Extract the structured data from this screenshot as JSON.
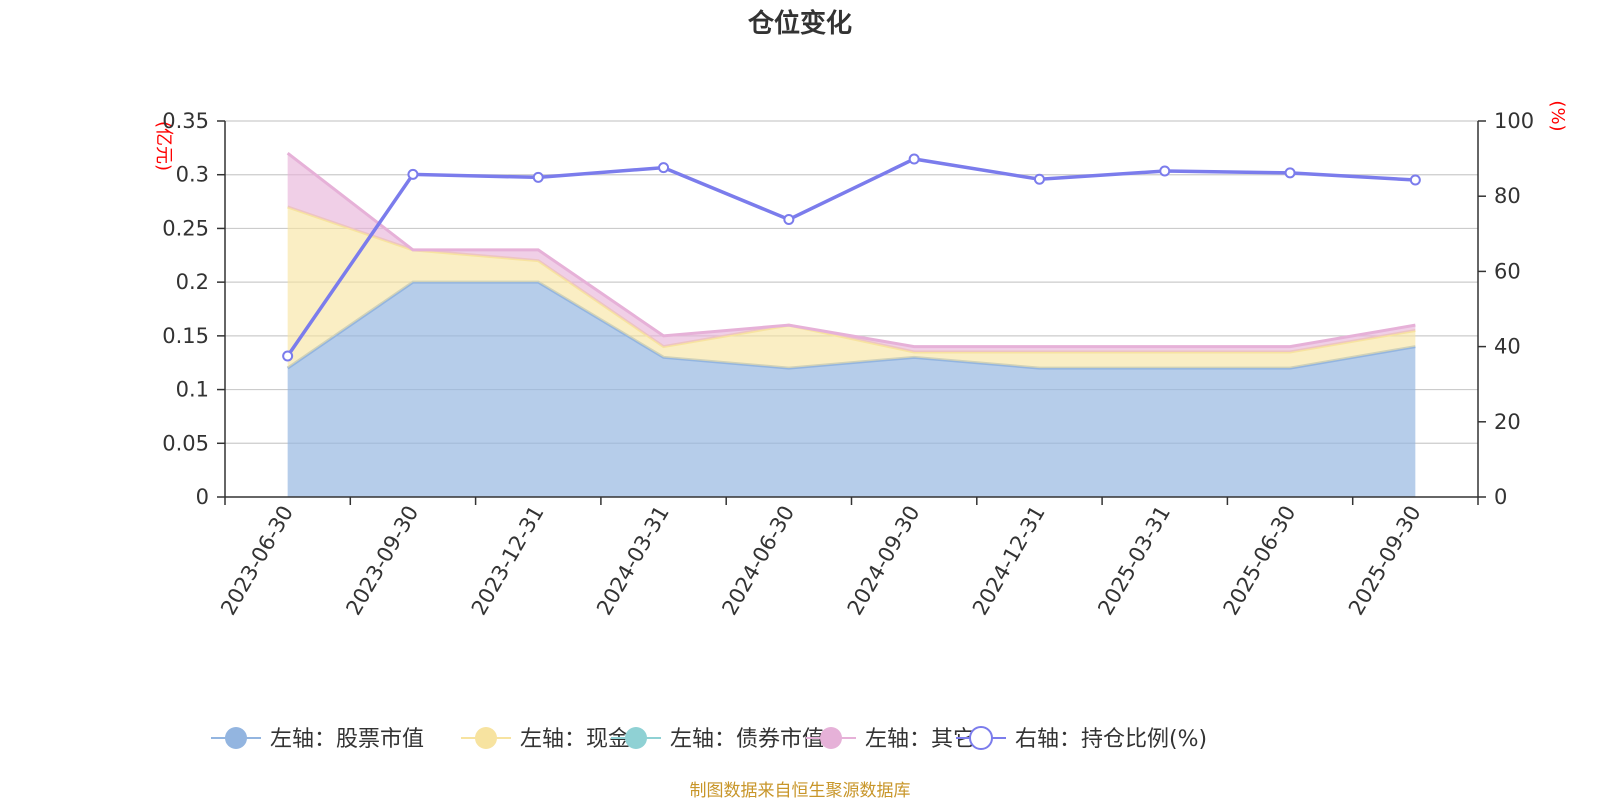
{
  "colors": {
    "stock": "#93b5e0",
    "cash": "#f7e3a0",
    "bond": "#8fd1d4",
    "other": "#e6b1d8",
    "ratio": "#7b7cec"
  },
  "chart_data": {
    "type": "area",
    "title": "仓位变化",
    "left_unit": "(亿元)",
    "right_unit": "(%)",
    "categories": [
      "2023-06-30",
      "2023-09-30",
      "2023-12-31",
      "2024-03-31",
      "2024-06-30",
      "2024-09-30",
      "2024-12-31",
      "2025-03-31",
      "2025-06-30",
      "2025-09-30"
    ],
    "left_axis": {
      "min": 0,
      "max": 0.35,
      "ticks": [
        0,
        0.05,
        0.1,
        0.15,
        0.2,
        0.25,
        0.3,
        0.35
      ],
      "tick_labels": [
        "0",
        "0.05",
        "0.1",
        "0.15",
        "0.2",
        "0.25",
        "0.3",
        "0.35"
      ]
    },
    "right_axis": {
      "min": 0,
      "max": 100,
      "ticks": [
        0,
        20,
        40,
        60,
        80,
        100
      ],
      "tick_labels": [
        "0",
        "20",
        "40",
        "60",
        "80",
        "100"
      ]
    },
    "series": [
      {
        "name": "左轴：股票市值",
        "axis": "left",
        "stacked": true,
        "values": [
          0.12,
          0.2,
          0.2,
          0.13,
          0.12,
          0.13,
          0.12,
          0.12,
          0.12,
          0.14
        ]
      },
      {
        "name": "左轴：现金",
        "axis": "left",
        "stacked": true,
        "values": [
          0.15,
          0.03,
          0.02,
          0.01,
          0.04,
          0.005,
          0.015,
          0.015,
          0.015,
          0.015
        ]
      },
      {
        "name": "左轴：债券市值",
        "axis": "left",
        "stacked": true,
        "values": [
          0,
          0,
          0,
          0,
          0,
          0,
          0,
          0,
          0,
          0
        ]
      },
      {
        "name": "左轴：其它",
        "axis": "left",
        "stacked": true,
        "values": [
          0.05,
          0.0,
          0.01,
          0.01,
          0.0,
          0.005,
          0.005,
          0.005,
          0.005,
          0.005
        ]
      },
      {
        "name": "右轴：持仓比例(%)",
        "axis": "right",
        "stacked": false,
        "values": [
          37.5,
          85.8,
          85.0,
          87.6,
          73.8,
          89.9,
          84.5,
          86.7,
          86.2,
          84.3
        ]
      }
    ],
    "legend": [
      "左轴：股票市值",
      "左轴：现金",
      "左轴：债券市值",
      "左轴：其它",
      "右轴：持仓比例(%)"
    ],
    "source": "制图数据来自恒生聚源数据库"
  }
}
